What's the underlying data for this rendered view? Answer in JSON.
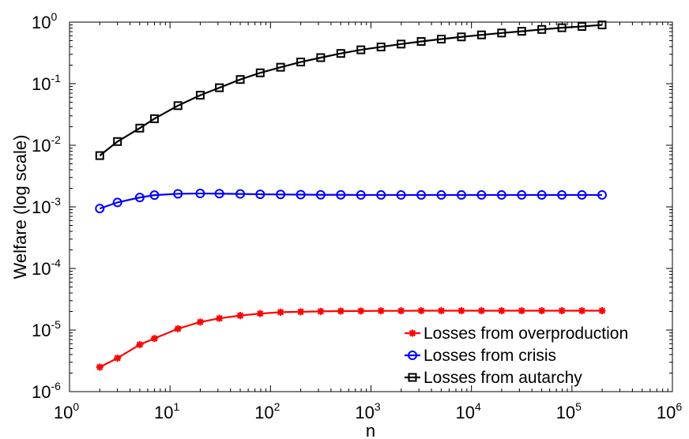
{
  "chart_data": {
    "type": "line",
    "title": "",
    "xlabel": "n",
    "ylabel": "Welfare (log scale)",
    "xscale": "log",
    "yscale": "log",
    "xlim": [
      1,
      1000000
    ],
    "ylim": [
      1e-06,
      1
    ],
    "x_ticks": [
      {
        "base": "10",
        "exp": "0",
        "value": 1
      },
      {
        "base": "10",
        "exp": "1",
        "value": 10
      },
      {
        "base": "10",
        "exp": "2",
        "value": 100
      },
      {
        "base": "10",
        "exp": "3",
        "value": 1000
      },
      {
        "base": "10",
        "exp": "4",
        "value": 10000
      },
      {
        "base": "10",
        "exp": "5",
        "value": 100000
      },
      {
        "base": "10",
        "exp": "6",
        "value": 1000000
      }
    ],
    "y_ticks": [
      {
        "base": "10",
        "exp": "-6",
        "value": 1e-06
      },
      {
        "base": "10",
        "exp": "-5",
        "value": 1e-05
      },
      {
        "base": "10",
        "exp": "-4",
        "value": 0.0001
      },
      {
        "base": "10",
        "exp": "-3",
        "value": 0.001
      },
      {
        "base": "10",
        "exp": "-2",
        "value": 0.01
      },
      {
        "base": "10",
        "exp": "-1",
        "value": 0.1
      },
      {
        "base": "10",
        "exp": "0",
        "value": 1
      }
    ],
    "grid": false,
    "legend_position": "bottom-right",
    "x": [
      2,
      3,
      5,
      7,
      12,
      20,
      31,
      50,
      79,
      126,
      200,
      316,
      501,
      794,
      1259,
      1995,
      3162,
      5012,
      7943,
      12589,
      19953,
      31623,
      50119,
      79433,
      125893,
      199526
    ],
    "series": [
      {
        "name": "Losses from overproduction",
        "color": "#ff0000",
        "marker": "asterisk",
        "values": [
          2.5e-06,
          3.5e-06,
          5.8e-06,
          7.3e-06,
          1.05e-05,
          1.35e-05,
          1.55e-05,
          1.72e-05,
          1.85e-05,
          1.95e-05,
          1.98e-05,
          2.01e-05,
          2.03e-05,
          2.04e-05,
          2.05e-05,
          2.05e-05,
          2.06e-05,
          2.06e-05,
          2.06e-05,
          2.06e-05,
          2.06e-05,
          2.06e-05,
          2.06e-05,
          2.06e-05,
          2.06e-05,
          2.06e-05
        ]
      },
      {
        "name": "Losses from crisis",
        "color": "#0000ff",
        "marker": "circle",
        "values": [
          0.00094,
          0.00118,
          0.00142,
          0.00155,
          0.00163,
          0.00165,
          0.00164,
          0.00162,
          0.0016,
          0.00159,
          0.00158,
          0.00157,
          0.00157,
          0.00156,
          0.00156,
          0.00156,
          0.00156,
          0.00156,
          0.00156,
          0.00156,
          0.00156,
          0.00156,
          0.00156,
          0.00156,
          0.00156,
          0.00156
        ]
      },
      {
        "name": "Losses from autarchy",
        "color": "#000000",
        "marker": "square",
        "values": [
          0.0068,
          0.0115,
          0.019,
          0.027,
          0.044,
          0.065,
          0.086,
          0.117,
          0.15,
          0.185,
          0.225,
          0.265,
          0.31,
          0.355,
          0.395,
          0.44,
          0.485,
          0.53,
          0.575,
          0.62,
          0.665,
          0.71,
          0.76,
          0.81,
          0.85,
          0.9
        ]
      }
    ]
  }
}
